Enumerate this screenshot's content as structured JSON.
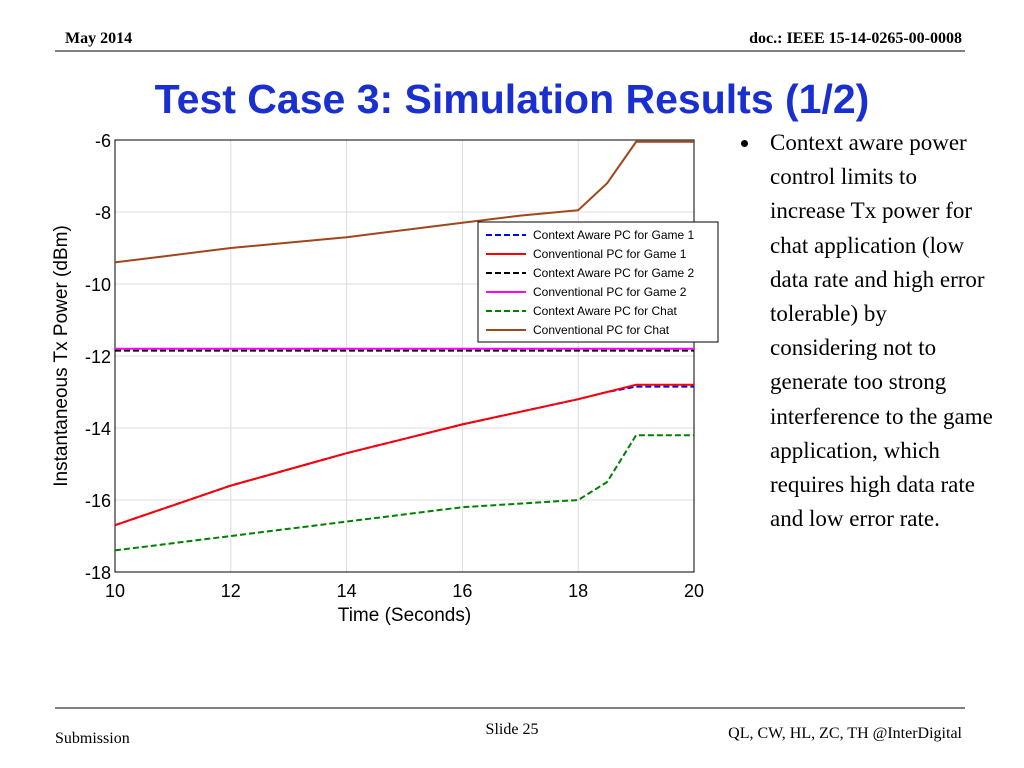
{
  "header": {
    "date": "May 2014",
    "doc": "doc.: IEEE 15-14-0265-00-0008"
  },
  "title": "Test Case 3: Simulation Results (1/2)",
  "bullet": "Context aware power control limits to increase Tx power for chat application (low data rate and high error tolerable) by considering not to generate too strong interference to the game application, which requires high data rate and low error rate.",
  "footer": {
    "left": "Submission",
    "center": "Slide 25",
    "right": "QL, CW, HL, ZC, TH @InterDigital"
  },
  "chart_data": {
    "type": "line",
    "x_label": "Time (Seconds)",
    "y_label": "Instantaneous Tx Power (dBm)",
    "x": [
      10,
      11,
      12,
      13,
      14,
      15,
      16,
      17,
      18,
      18.5,
      19,
      20
    ],
    "series": [
      {
        "name": "Context Aware PC for Game 1",
        "color": "#0000ff",
        "dashed": true,
        "values": [
          -16.7,
          -16.15,
          -15.6,
          -15.15,
          -14.7,
          -14.3,
          -13.9,
          -13.55,
          -13.2,
          -13.0,
          -12.85,
          -12.85
        ]
      },
      {
        "name": "Conventional PC for Game 1",
        "color": "#ff0000",
        "dashed": false,
        "values": [
          -16.7,
          -16.15,
          -15.6,
          -15.15,
          -14.7,
          -14.3,
          -13.9,
          -13.55,
          -13.2,
          -13.0,
          -12.8,
          -12.8
        ]
      },
      {
        "name": "Context Aware PC for Game 2",
        "color": "#000000",
        "dashed": true,
        "values": [
          -11.85,
          -11.85,
          -11.85,
          -11.85,
          -11.85,
          -11.85,
          -11.85,
          -11.85,
          -11.85,
          -11.85,
          -11.85,
          -11.85
        ]
      },
      {
        "name": "Conventional PC for Game 2",
        "color": "#ff00ff",
        "dashed": false,
        "values": [
          -11.8,
          -11.8,
          -11.8,
          -11.8,
          -11.8,
          -11.8,
          -11.8,
          -11.8,
          -11.8,
          -11.8,
          -11.8,
          -11.8
        ]
      },
      {
        "name": "Context Aware PC for Chat",
        "color": "#008000",
        "dashed": true,
        "values": [
          -17.4,
          -17.2,
          -17.0,
          -16.8,
          -16.6,
          -16.4,
          -16.2,
          -16.1,
          -16.0,
          -15.5,
          -14.2,
          -14.2
        ]
      },
      {
        "name": "Conventional PC for Chat",
        "color": "#a0461a",
        "dashed": false,
        "values": [
          -9.4,
          -9.2,
          -9.0,
          -8.85,
          -8.7,
          -8.5,
          -8.3,
          -8.1,
          -7.95,
          -7.2,
          -6.05,
          -6.05
        ]
      }
    ],
    "xlim": [
      10,
      20
    ],
    "ylim": [
      -18,
      -6
    ],
    "xticks": [
      10,
      12,
      14,
      16,
      18,
      20
    ],
    "yticks": [
      -18,
      -16,
      -14,
      -12,
      -10,
      -8,
      -6
    ],
    "grid": true,
    "legend": "upper right"
  }
}
